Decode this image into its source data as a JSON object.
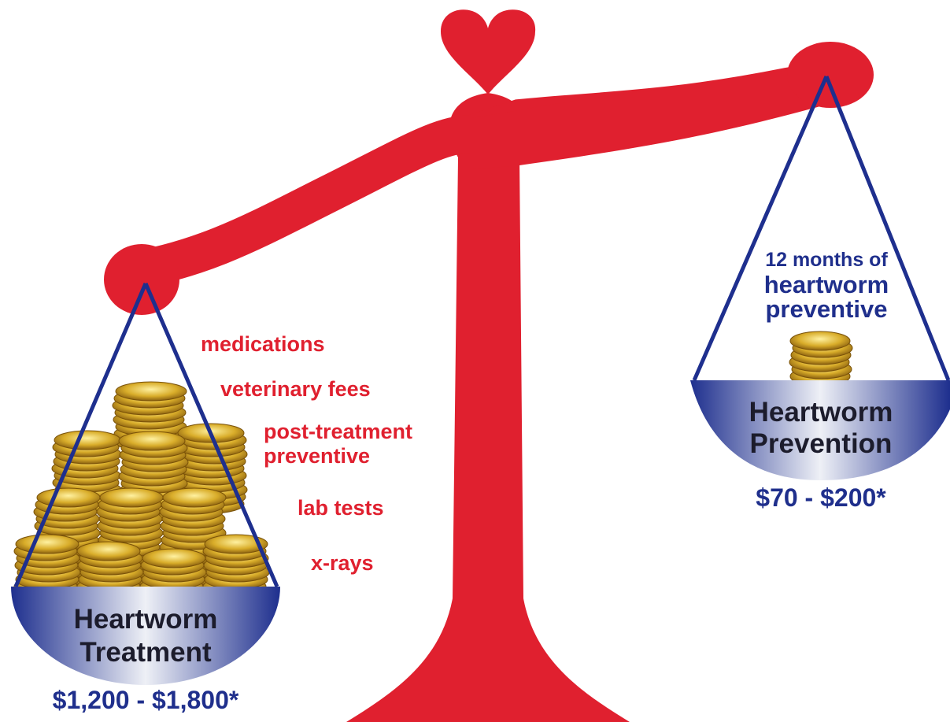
{
  "left_pan": {
    "title_lines": [
      "Heartworm",
      "Treatment"
    ],
    "price": "$1,200 - $1,800*",
    "cost_items": [
      "medications",
      "veterinary fees",
      [
        "post-treatment",
        "preventive"
      ],
      "lab tests",
      "x-rays"
    ]
  },
  "right_pan": {
    "caption_lines": [
      "12 months of",
      "heartworm",
      "preventive"
    ],
    "title_lines": [
      "Heartworm",
      "Prevention"
    ],
    "price": "$70 - $200*"
  }
}
